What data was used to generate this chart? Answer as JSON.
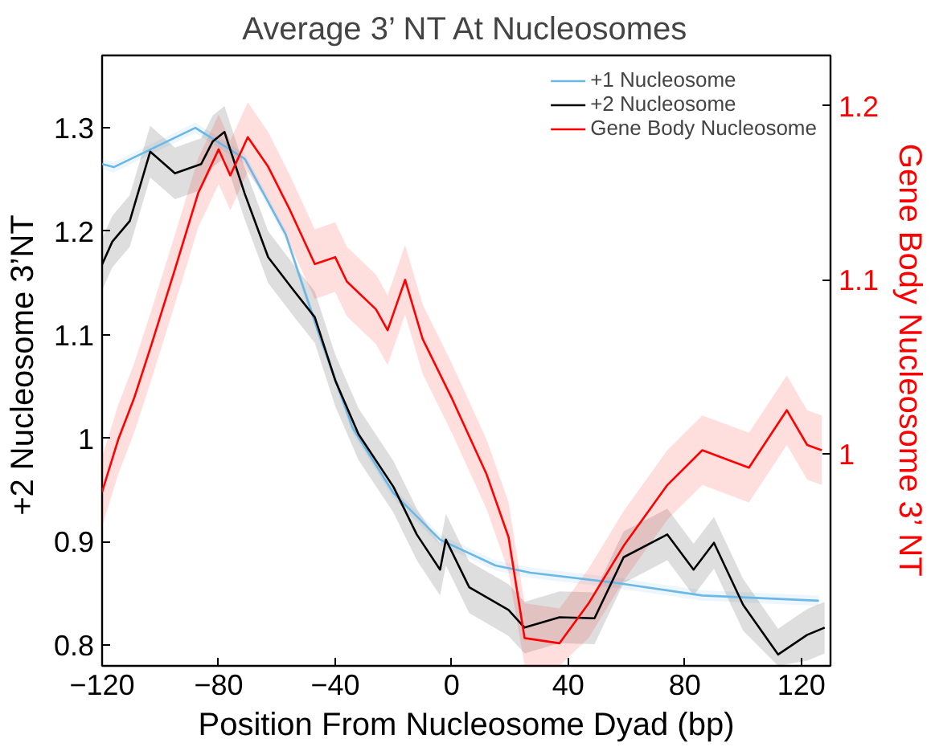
{
  "chart_data": {
    "type": "line",
    "title": "Average 3’ NT At Nucleosomes",
    "xlabel": "Position From Nucleosome Dyad (bp)",
    "ylabel": "+2 Nucleosome  3’NT",
    "y2label": "Gene Body Nucleosome 3’ NT",
    "xlim": [
      -120,
      130
    ],
    "xticks": [
      {
        "value": -120,
        "label": "−120"
      },
      {
        "value": -80,
        "label": "−80"
      },
      {
        "value": -40,
        "label": "−40"
      },
      0,
      40,
      80,
      120
    ],
    "ylim": [
      0.78,
      1.37
    ],
    "yticks": [
      0.8,
      0.9,
      {
        "value": 1,
        "label": "1"
      },
      1.1,
      1.2,
      1.3
    ],
    "y2lim": [
      0.878,
      1.229
    ],
    "y2ticks": [
      {
        "value": 1,
        "label": "1"
      },
      1.1,
      1.2
    ],
    "grid": false,
    "legend": "top right",
    "marker": "none",
    "line_style": "solid",
    "series": [
      {
        "name": "+1 Nucleosome",
        "color": "#6bb8e6",
        "x": [
          -120,
          -116,
          -88,
          -71,
          -57,
          -45.5,
          -34,
          -20,
          -4,
          15,
          27,
          57,
          86,
          126
        ],
        "values": [
          1.265,
          1.262,
          1.3,
          1.27,
          1.197,
          1.1,
          1.01,
          0.947,
          0.902,
          0.877,
          0.87,
          0.86,
          0.848,
          0.843
        ],
        "lower": [
          1.26,
          1.257,
          1.295,
          1.265,
          1.192,
          1.095,
          1.005,
          0.942,
          0.897,
          0.872,
          0.865,
          0.855,
          0.843,
          0.838
        ],
        "upper": [
          1.27,
          1.267,
          1.305,
          1.275,
          1.202,
          1.105,
          1.015,
          0.952,
          0.907,
          0.882,
          0.875,
          0.865,
          0.853,
          0.848
        ]
      },
      {
        "name": "+2 Nucleosome",
        "color": "#000000",
        "x": [
          -120,
          -116.5,
          -110.5,
          -103.5,
          -95,
          -86,
          -82,
          -78,
          -71,
          -63,
          -54,
          -47,
          -40,
          -32,
          -20,
          -12,
          -4,
          -2,
          6,
          19.5,
          25,
          37,
          49,
          59,
          74,
          83,
          90,
          100,
          112,
          122,
          128
        ],
        "values": [
          1.168,
          1.19,
          1.21,
          1.277,
          1.256,
          1.265,
          1.287,
          1.296,
          1.236,
          1.175,
          1.142,
          1.117,
          1.056,
          1.004,
          0.953,
          0.907,
          0.873,
          0.902,
          0.856,
          0.834,
          0.817,
          0.827,
          0.826,
          0.885,
          0.907,
          0.873,
          0.899,
          0.839,
          0.791,
          0.81,
          0.817
        ],
        "lower": [
          1.143,
          1.165,
          1.185,
          1.252,
          1.231,
          1.24,
          1.262,
          1.271,
          1.211,
          1.15,
          1.117,
          1.092,
          1.031,
          0.979,
          0.928,
          0.882,
          0.848,
          0.877,
          0.831,
          0.809,
          0.792,
          0.802,
          0.801,
          0.86,
          0.882,
          0.848,
          0.874,
          0.814,
          0.78,
          0.785,
          0.792
        ],
        "upper": [
          1.193,
          1.215,
          1.235,
          1.302,
          1.281,
          1.29,
          1.312,
          1.321,
          1.261,
          1.2,
          1.167,
          1.142,
          1.081,
          1.029,
          0.978,
          0.932,
          0.898,
          0.927,
          0.881,
          0.859,
          0.842,
          0.852,
          0.851,
          0.91,
          0.932,
          0.898,
          0.924,
          0.864,
          0.816,
          0.835,
          0.842
        ]
      },
      {
        "name": "Gene Body Nucleosome",
        "color": "#ff0000",
        "axis": "y2",
        "x": [
          -120,
          -114.5,
          -109,
          -103,
          -95,
          -87,
          -80,
          -76,
          -70,
          -63,
          -55.5,
          -47,
          -40,
          -36,
          -26,
          -22,
          -16,
          -10,
          0,
          12,
          19.5,
          25,
          37,
          47,
          59,
          74,
          86,
          102,
          115,
          122,
          127
        ],
        "values": [
          0.978,
          1.008,
          1.032,
          1.063,
          1.106,
          1.15,
          1.175,
          1.16,
          1.182,
          1.165,
          1.14,
          1.109,
          1.113,
          1.099,
          1.083,
          1.071,
          1.1,
          1.066,
          1.032,
          0.988,
          0.952,
          0.894,
          0.891,
          0.914,
          0.947,
          0.982,
          1.002,
          0.992,
          1.025,
          1.005,
          1.002
        ],
        "lower": [
          0.958,
          0.988,
          1.012,
          1.043,
          1.086,
          1.13,
          1.155,
          1.14,
          1.162,
          1.145,
          1.12,
          1.089,
          1.093,
          1.079,
          1.063,
          1.051,
          1.08,
          1.046,
          1.012,
          0.968,
          0.932,
          0.878,
          0.878,
          0.894,
          0.927,
          0.962,
          0.982,
          0.972,
          1.005,
          0.985,
          0.982
        ],
        "upper": [
          0.998,
          1.028,
          1.052,
          1.083,
          1.126,
          1.17,
          1.195,
          1.18,
          1.202,
          1.185,
          1.16,
          1.129,
          1.133,
          1.119,
          1.103,
          1.091,
          1.12,
          1.086,
          1.052,
          1.008,
          0.972,
          0.914,
          0.911,
          0.934,
          0.967,
          1.002,
          1.022,
          1.012,
          1.045,
          1.025,
          1.022
        ]
      }
    ]
  }
}
